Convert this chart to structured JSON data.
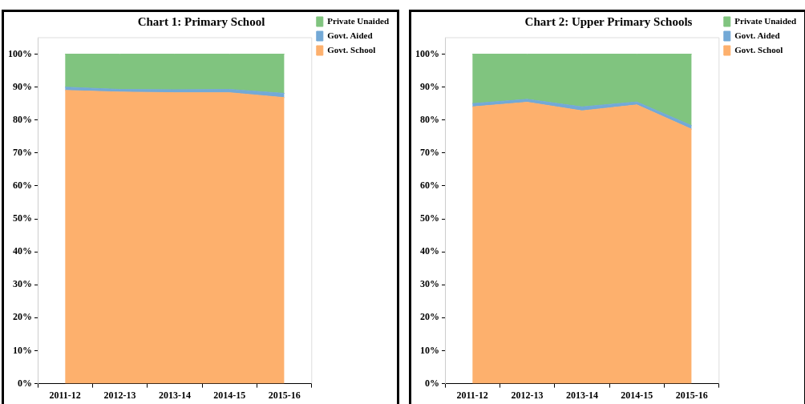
{
  "chart_data": [
    {
      "type": "area",
      "title": "Chart 1: Primary School",
      "stacked": true,
      "categories": [
        "2011-12",
        "2012-13",
        "2013-14",
        "2014-15",
        "2015-16"
      ],
      "series": [
        {
          "name": "Govt. School",
          "color": "#fdb06d",
          "values": [
            89,
            88.5,
            88.3,
            88.3,
            86.8
          ]
        },
        {
          "name": "Govt. Aided",
          "color": "#73a9d6",
          "values": [
            1,
            0.8,
            0.9,
            1,
            1.3
          ]
        },
        {
          "name": "Private Unaided",
          "color": "#80c47f",
          "values": [
            10,
            10.7,
            10.8,
            10.7,
            11.9
          ]
        }
      ],
      "ylim": [
        0,
        105
      ],
      "yticks": [
        {
          "value": 0,
          "label": "0%"
        },
        {
          "value": 10,
          "label": "10%"
        },
        {
          "value": 20,
          "label": "20%"
        },
        {
          "value": 30,
          "label": "30%"
        },
        {
          "value": 40,
          "label": "40%"
        },
        {
          "value": 50,
          "label": "50%"
        },
        {
          "value": 60,
          "label": "60%"
        },
        {
          "value": 70,
          "label": "70%"
        },
        {
          "value": 80,
          "label": "80%"
        },
        {
          "value": 90,
          "label": "90%"
        },
        {
          "value": 100,
          "label": "100%"
        }
      ],
      "grid": false,
      "legend": "top right"
    },
    {
      "type": "area",
      "title": "Chart 2: Upper Primary Schools",
      "stacked": true,
      "categories": [
        "2011-12",
        "2012-13",
        "2013-14",
        "2014-15",
        "2015-16"
      ],
      "series": [
        {
          "name": "Govt. School",
          "color": "#fdb06d",
          "values": [
            84,
            85.4,
            82.8,
            84.6,
            77.2
          ]
        },
        {
          "name": "Govt. Aided",
          "color": "#73a9d6",
          "values": [
            1,
            0.9,
            1.2,
            0.9,
            1.1
          ]
        },
        {
          "name": "Private Unaided",
          "color": "#80c47f",
          "values": [
            15,
            13.7,
            16,
            14.5,
            21.7
          ]
        }
      ],
      "ylim": [
        0,
        105
      ],
      "yticks": [
        {
          "value": 0,
          "label": "0%"
        },
        {
          "value": 10,
          "label": "10%"
        },
        {
          "value": 20,
          "label": "20%"
        },
        {
          "value": 30,
          "label": "30%"
        },
        {
          "value": 40,
          "label": "40%"
        },
        {
          "value": 50,
          "label": "50%"
        },
        {
          "value": 60,
          "label": "60%"
        },
        {
          "value": 70,
          "label": "70%"
        },
        {
          "value": 80,
          "label": "80%"
        },
        {
          "value": 90,
          "label": "90%"
        },
        {
          "value": 100,
          "label": "100%"
        }
      ],
      "grid": false,
      "legend": "top right"
    }
  ]
}
